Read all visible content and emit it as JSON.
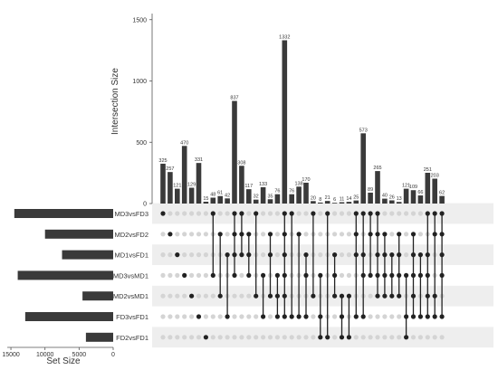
{
  "chart_data": {
    "type": "bar",
    "plot_kind": "upset",
    "ylabel": "Intersection Size",
    "ylim": [
      0,
      1550
    ],
    "yticks": [
      0,
      500,
      1000,
      1500
    ],
    "xlabel": "Set Size",
    "set_size_ticks": [
      15000,
      10000,
      5000,
      0
    ],
    "sets": [
      {
        "name": "MD3vsFD3",
        "size": 14500
      },
      {
        "name": "MD2vsFD2",
        "size": 10000
      },
      {
        "name": "MD1vsFD1",
        "size": 7500
      },
      {
        "name": "MD3vsMD1",
        "size": 14000
      },
      {
        "name": "MD2vsMD1",
        "size": 4500
      },
      {
        "name": "FD3vsFD1",
        "size": 12900
      },
      {
        "name": "FD2vsFD1",
        "size": 4000
      }
    ],
    "intersections": [
      {
        "value": 325,
        "sets": [
          0
        ]
      },
      {
        "value": 257,
        "sets": [
          1
        ]
      },
      {
        "value": 121,
        "sets": [
          2
        ]
      },
      {
        "value": 470,
        "sets": [
          3
        ]
      },
      {
        "value": 129,
        "sets": [
          4
        ]
      },
      {
        "value": 331,
        "sets": [
          5
        ]
      },
      {
        "value": 15,
        "sets": [
          6
        ]
      },
      {
        "value": 48,
        "sets": [
          0,
          3
        ]
      },
      {
        "value": 61,
        "sets": [
          1,
          4
        ]
      },
      {
        "value": 42,
        "sets": [
          2,
          5
        ]
      },
      {
        "value": 837,
        "sets": [
          0,
          1,
          2,
          3
        ]
      },
      {
        "value": 308,
        "sets": [
          0,
          1,
          2
        ]
      },
      {
        "value": 117,
        "sets": [
          1,
          2,
          3
        ]
      },
      {
        "value": 32,
        "sets": [
          0,
          4
        ]
      },
      {
        "value": 133,
        "sets": [
          3,
          5
        ]
      },
      {
        "value": 35,
        "sets": [
          1,
          2,
          4
        ]
      },
      {
        "value": 76,
        "sets": [
          3,
          4,
          5
        ]
      },
      {
        "value": 1332,
        "sets": [
          0,
          1,
          2,
          3,
          4,
          5
        ]
      },
      {
        "value": 76,
        "sets": [
          0,
          5
        ]
      },
      {
        "value": 138,
        "sets": [
          1,
          5
        ]
      },
      {
        "value": 170,
        "sets": [
          2,
          3,
          5
        ]
      },
      {
        "value": 20,
        "sets": [
          0,
          4
        ]
      },
      {
        "value": 8,
        "sets": [
          3,
          5,
          6
        ]
      },
      {
        "value": 21,
        "sets": [
          0,
          6
        ]
      },
      {
        "value": 6,
        "sets": [
          2,
          3,
          4
        ]
      },
      {
        "value": 11,
        "sets": [
          4,
          5,
          6
        ]
      },
      {
        "value": 14,
        "sets": [
          4,
          6
        ]
      },
      {
        "value": 25,
        "sets": [
          0,
          1,
          2,
          5
        ]
      },
      {
        "value": 573,
        "sets": [
          0,
          2,
          3,
          5
        ]
      },
      {
        "value": 89,
        "sets": [
          0,
          1,
          3
        ]
      },
      {
        "value": 265,
        "sets": [
          0,
          1,
          2,
          3,
          4
        ]
      },
      {
        "value": 40,
        "sets": [
          1,
          2,
          3,
          4
        ]
      },
      {
        "value": 26,
        "sets": [
          2,
          3,
          4
        ]
      },
      {
        "value": 13,
        "sets": [
          1,
          2,
          3,
          4
        ]
      },
      {
        "value": 121,
        "sets": [
          3,
          5,
          6
        ]
      },
      {
        "value": 109,
        "sets": [
          1,
          2,
          3,
          4,
          5
        ]
      },
      {
        "value": 66,
        "sets": [
          2,
          3,
          5
        ]
      },
      {
        "value": 251,
        "sets": [
          0,
          2,
          3,
          4,
          5
        ]
      },
      {
        "value": 203,
        "sets": [
          0,
          1,
          4,
          5
        ]
      },
      {
        "value": 62,
        "sets": [
          0,
          1,
          2,
          3,
          5
        ]
      }
    ],
    "colors": {
      "bar": "#3a3a3a",
      "dot_active": "#222222",
      "dot_inactive": "#d4d4d4",
      "stripe": "#eeeeee",
      "axis": "#555555"
    }
  }
}
